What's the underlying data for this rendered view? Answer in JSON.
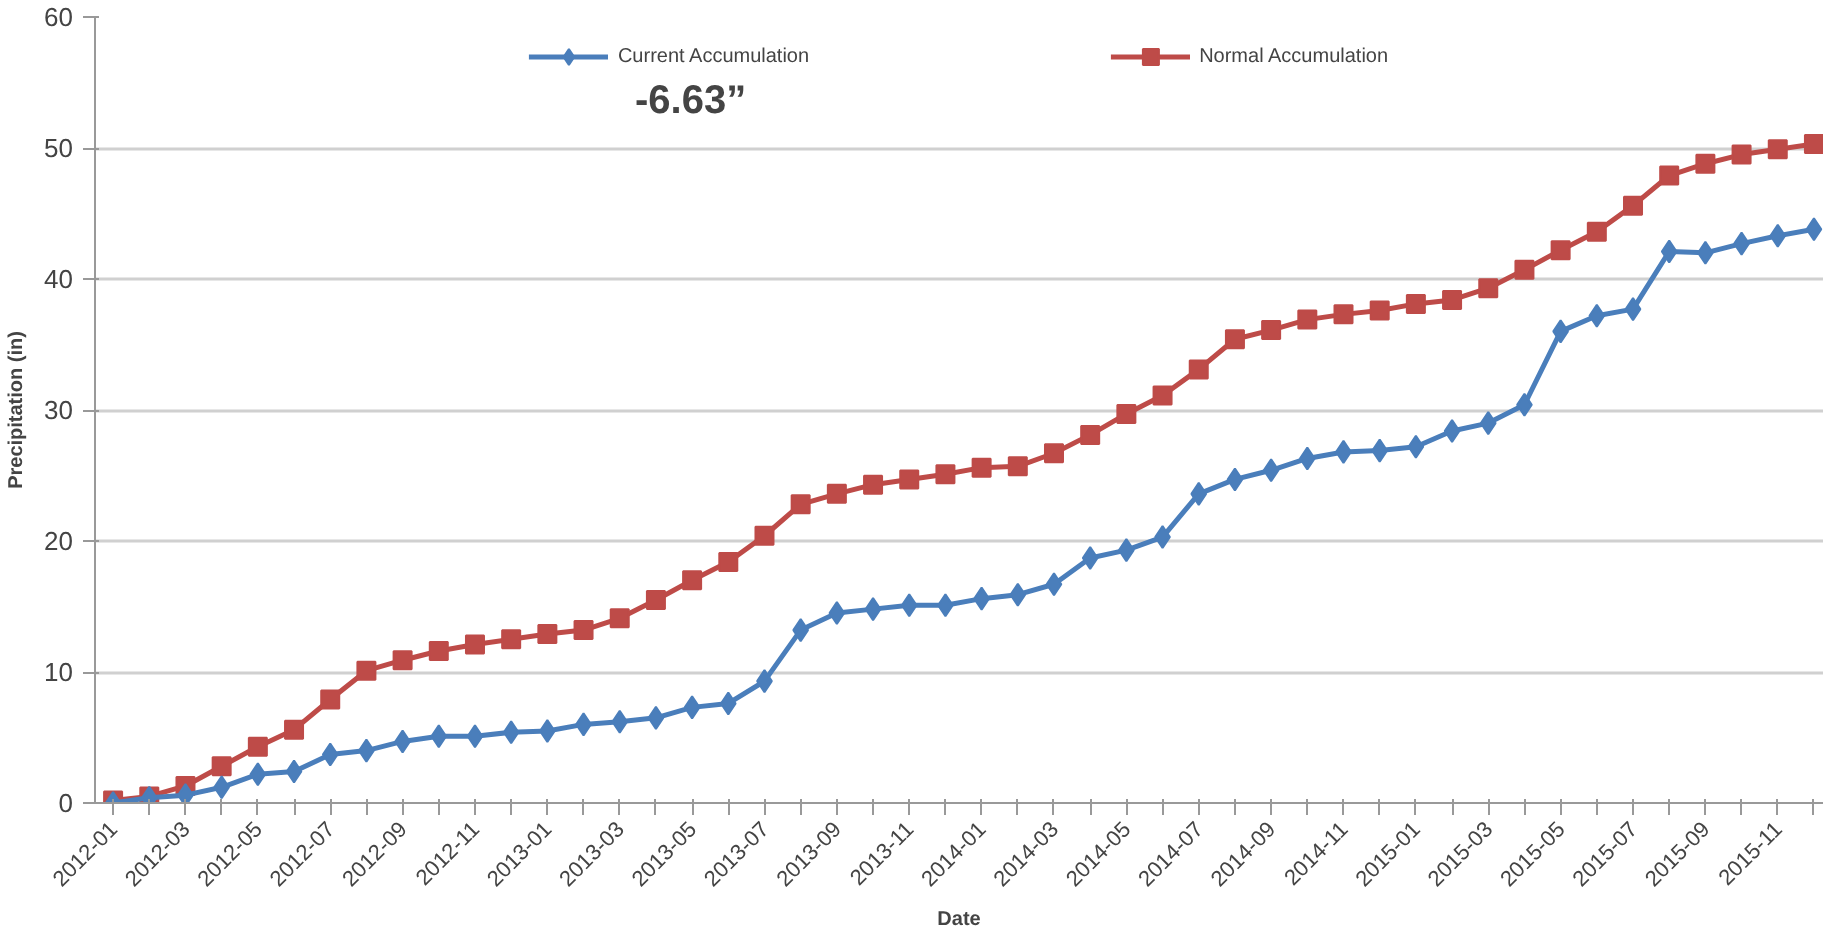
{
  "chart_data": {
    "type": "line",
    "xlabel": "Date",
    "ylabel": "Precipitation (in)",
    "categories": [
      "2012-01",
      null,
      "2012-03",
      null,
      "2012-05",
      null,
      "2012-07",
      null,
      "2012-09",
      null,
      "2012-11",
      null,
      "2013-01",
      null,
      "2013-03",
      null,
      "2013-05",
      null,
      "2013-07",
      null,
      "2013-09",
      null,
      "2013-11",
      null,
      "2014-01",
      null,
      "2014-03",
      null,
      "2014-05",
      null,
      "2014-07",
      null,
      "2014-09",
      null,
      "2014-11",
      null,
      "2015-01",
      null,
      "2015-03",
      null,
      "2015-05",
      null,
      "2015-07",
      null,
      "2015-09",
      null,
      "2015-11",
      null
    ],
    "series": [
      {
        "name": "Current Accumulation",
        "color": "#4a7ebb",
        "marker": "diamond",
        "values": [
          0.0,
          0.4,
          0.6,
          1.2,
          2.2,
          2.4,
          3.7,
          4.0,
          4.7,
          5.1,
          5.1,
          5.4,
          5.5,
          6.0,
          6.2,
          6.5,
          7.3,
          7.6,
          9.3,
          13.2,
          14.5,
          14.8,
          15.1,
          15.1,
          15.6,
          15.9,
          16.7,
          18.7,
          19.3,
          20.3,
          23.6,
          24.7,
          25.4,
          26.3,
          26.8,
          26.9,
          27.2,
          28.4,
          29.0,
          30.4,
          36.0,
          37.2,
          37.7,
          42.1,
          42.0,
          42.7,
          43.3,
          43.8
        ]
      },
      {
        "name": "Normal Accumulation",
        "color": "#be4b48",
        "marker": "square",
        "values": [
          0.2,
          0.5,
          1.3,
          2.8,
          4.3,
          5.6,
          7.9,
          10.1,
          10.9,
          11.6,
          12.1,
          12.5,
          12.9,
          13.2,
          14.1,
          15.5,
          17.0,
          18.4,
          20.4,
          22.8,
          23.6,
          24.3,
          24.7,
          25.1,
          25.6,
          25.7,
          26.7,
          28.1,
          29.7,
          31.1,
          33.1,
          35.4,
          36.1,
          36.9,
          37.3,
          37.6,
          38.1,
          38.4,
          39.3,
          40.7,
          42.2,
          43.6,
          45.6,
          47.9,
          48.8,
          49.5,
          49.9,
          50.3
        ]
      }
    ],
    "ylim": [
      0,
      60
    ],
    "yticks": [
      0,
      10,
      20,
      30,
      40,
      50,
      60
    ],
    "grid": "y",
    "legend": "top",
    "annotations": [
      "-6.63”"
    ]
  }
}
